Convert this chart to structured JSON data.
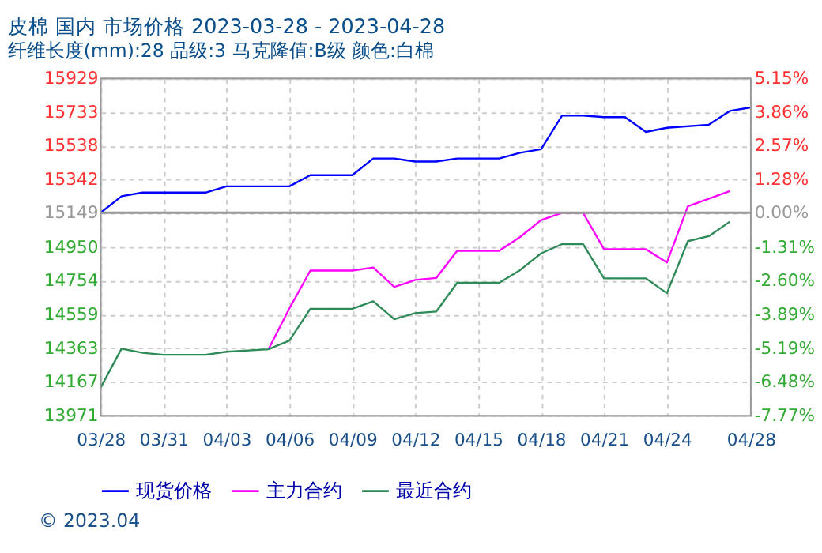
{
  "chart_data": {
    "type": "line",
    "title": "皮棉 国内 市场价格 2023-03-28 - 2023-04-28",
    "subtitle": "纤维长度(mm):28 品级:3 马克隆值:B级 颜色:白棉",
    "xlim": [
      "2023-03-28",
      "2023-04-28"
    ],
    "xticks": [
      {
        "value": "2023-03-28",
        "label": "03/28"
      },
      {
        "value": "2023-03-31",
        "label": "03/31"
      },
      {
        "value": "2023-04-03",
        "label": "04/03"
      },
      {
        "value": "2023-04-06",
        "label": "04/06"
      },
      {
        "value": "2023-04-09",
        "label": "04/09"
      },
      {
        "value": "2023-04-12",
        "label": "04/12"
      },
      {
        "value": "2023-04-15",
        "label": "04/15"
      },
      {
        "value": "2023-04-18",
        "label": "04/18"
      },
      {
        "value": "2023-04-21",
        "label": "04/21"
      },
      {
        "value": "2023-04-24",
        "label": "04/24"
      },
      {
        "value": "2023-04-28",
        "label": "04/28"
      }
    ],
    "ylim": [
      13971,
      15929
    ],
    "yticks": [
      13971,
      14167,
      14363,
      14559,
      14754,
      14950,
      15149,
      15342,
      15538,
      15733,
      15929
    ],
    "y2lim": [
      -7.77,
      5.15
    ],
    "y2ticks": [
      {
        "value": -7.77,
        "label": "-7.77%"
      },
      {
        "value": -6.48,
        "label": "-6.48%"
      },
      {
        "value": -5.19,
        "label": "-5.19%"
      },
      {
        "value": -3.89,
        "label": "-3.89%"
      },
      {
        "value": -2.6,
        "label": "-2.60%"
      },
      {
        "value": -1.31,
        "label": "-1.31%"
      },
      {
        "value": 0,
        "label": "0.00%"
      },
      {
        "value": 1.28,
        "label": "1.28%"
      },
      {
        "value": 2.57,
        "label": "2.57%"
      },
      {
        "value": 3.86,
        "label": "3.86%"
      },
      {
        "value": 5.15,
        "label": "5.15%"
      }
    ],
    "ref_lines": [
      {
        "axis": "y",
        "value": 15149,
        "color": "#999999"
      }
    ],
    "grid": true,
    "legend": "bottom",
    "marker": "none",
    "line_style": "solid",
    "series": [
      {
        "name": "现货价格",
        "color": "#0000ff",
        "x": [
          "2023-03-28",
          "2023-03-29",
          "2023-03-30",
          "2023-04-02",
          "2023-04-03",
          "2023-04-06",
          "2023-04-07",
          "2023-04-09",
          "2023-04-10",
          "2023-04-11",
          "2023-04-12",
          "2023-04-13",
          "2023-04-14",
          "2023-04-16",
          "2023-04-17",
          "2023-04-18",
          "2023-04-19",
          "2023-04-20",
          "2023-04-21",
          "2023-04-22",
          "2023-04-23",
          "2023-04-24",
          "2023-04-26",
          "2023-04-27",
          "2023-04-28"
        ],
        "values": [
          15149,
          15245,
          15266,
          15266,
          15302,
          15302,
          15367,
          15367,
          15464,
          15464,
          15446,
          15446,
          15464,
          15464,
          15497,
          15518,
          15713,
          15713,
          15704,
          15704,
          15618,
          15642,
          15660,
          15740,
          15760
        ]
      },
      {
        "name": "主力合约",
        "color": "#ff00ff",
        "x": [
          "2023-04-05",
          "2023-04-06",
          "2023-04-07",
          "2023-04-09",
          "2023-04-10",
          "2023-04-11",
          "2023-04-12",
          "2023-04-13",
          "2023-04-14",
          "2023-04-16",
          "2023-04-17",
          "2023-04-18",
          "2023-04-19",
          "2023-04-20",
          "2023-04-21",
          "2023-04-23",
          "2023-04-24",
          "2023-04-25",
          "2023-04-27"
        ],
        "values": [
          14356,
          14593,
          14813,
          14813,
          14831,
          14718,
          14759,
          14770,
          14928,
          14928,
          15008,
          15106,
          15149,
          15149,
          14937,
          14937,
          14860,
          15186,
          15275
        ]
      },
      {
        "name": "最近合约",
        "color": "#2e8b57",
        "x": [
          "2023-03-28",
          "2023-03-29",
          "2023-03-30",
          "2023-03-31",
          "2023-04-02",
          "2023-04-03",
          "2023-04-05",
          "2023-04-06",
          "2023-04-07",
          "2023-04-09",
          "2023-04-10",
          "2023-04-11",
          "2023-04-12",
          "2023-04-13",
          "2023-04-14",
          "2023-04-16",
          "2023-04-17",
          "2023-04-18",
          "2023-04-19",
          "2023-04-20",
          "2023-04-21",
          "2023-04-23",
          "2023-04-24",
          "2023-04-25",
          "2023-04-26",
          "2023-04-27"
        ],
        "values": [
          14134,
          14360,
          14336,
          14324,
          14324,
          14342,
          14356,
          14407,
          14591,
          14591,
          14635,
          14531,
          14566,
          14575,
          14742,
          14742,
          14816,
          14913,
          14967,
          14967,
          14768,
          14768,
          14682,
          14984,
          15013,
          15097
        ]
      }
    ],
    "annotations": [
      "© 2023.04"
    ]
  }
}
